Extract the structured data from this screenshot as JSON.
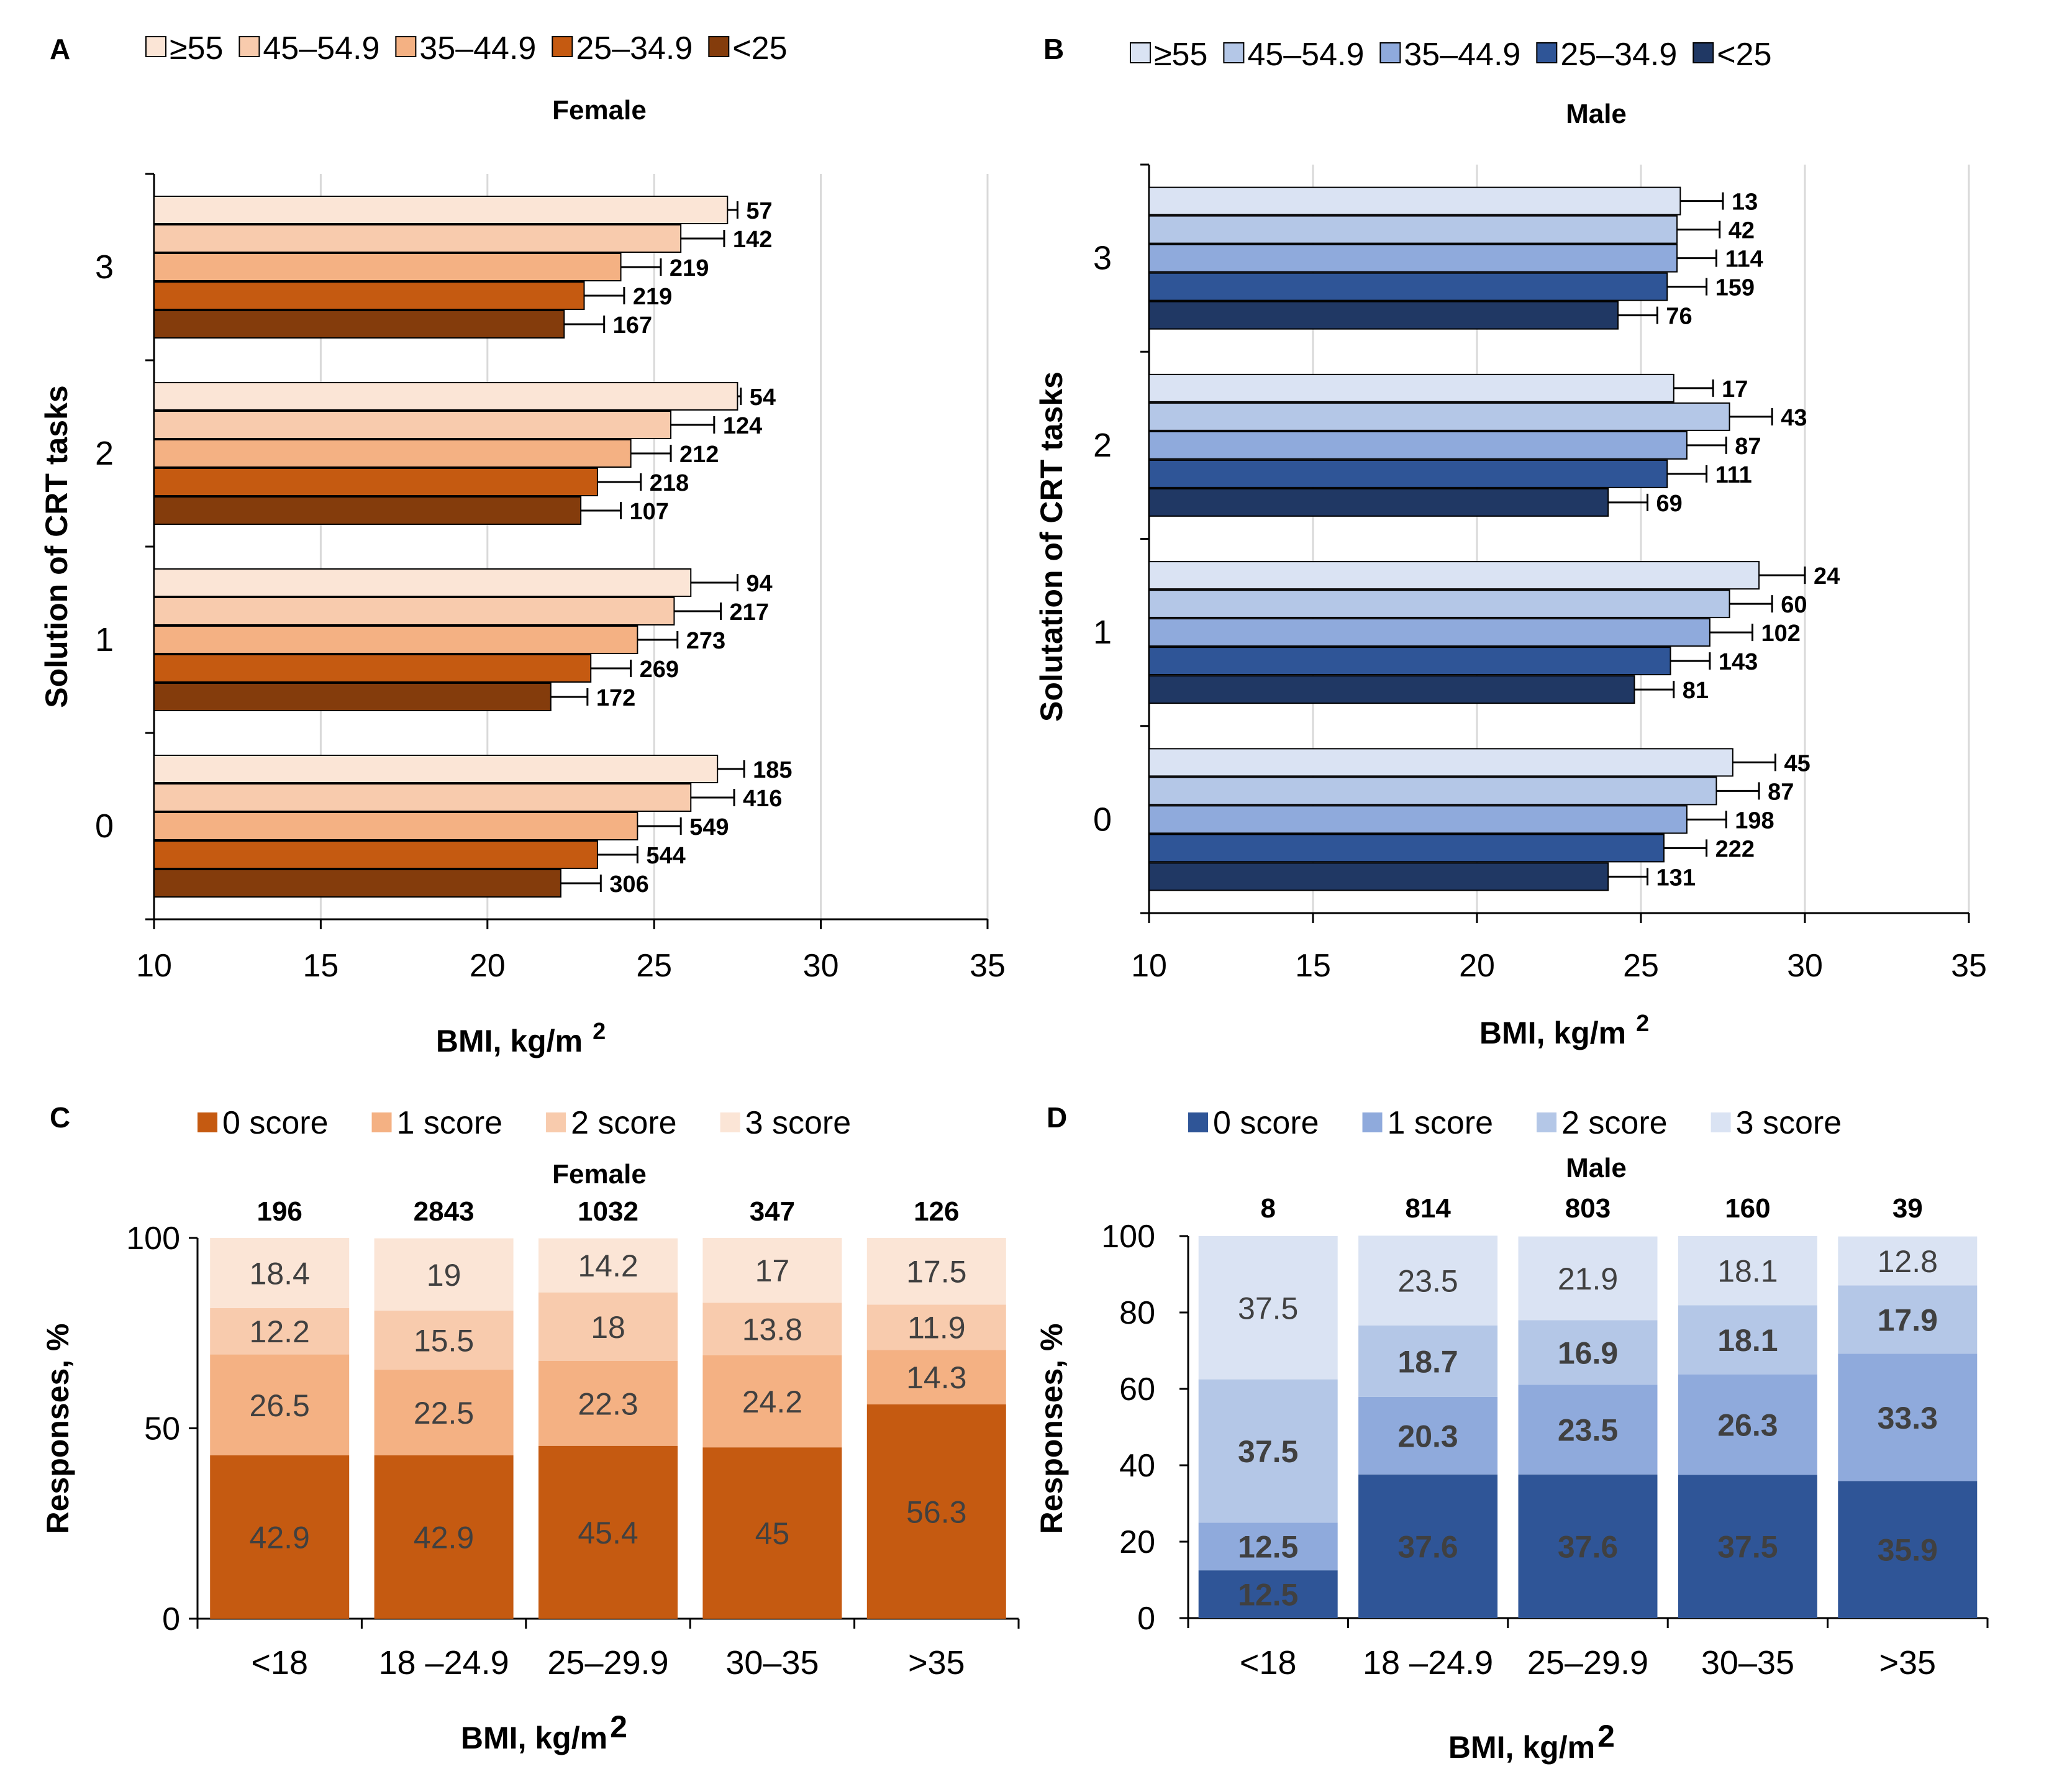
{
  "panels_ab": [
    {
      "letter": "A",
      "title": "Female",
      "y_axis_title": "Solution of CRT tasks",
      "x_axis_title": "BMI, kg/m",
      "x_axis_sup": "2",
      "legend": [
        "≥55",
        "45–54.9",
        "35–44.9",
        "25–34.9",
        "<25"
      ],
      "colors": [
        "#fbe5d6",
        "#f8cbad",
        "#f4b183",
        "#c55a11",
        "#843c0c"
      ]
    },
    {
      "letter": "B",
      "title": "Male",
      "y_axis_title": "Solutation of CRT tasks",
      "x_axis_title": "BMI, kg/m",
      "x_axis_sup": "2",
      "legend": [
        "≥55",
        "45–54.9",
        "35–44.9",
        "25–34.9",
        "<25"
      ],
      "colors": [
        "#dae3f3",
        "#b4c7e7",
        "#8faadc",
        "#2f5597",
        "#203864"
      ]
    }
  ],
  "panels_cd": [
    {
      "letter": "C",
      "title": "Female",
      "y_axis_title": "Responses, %",
      "x_axis_title": "BMI, kg/m",
      "x_axis_sup": "2",
      "legend": [
        "0 score",
        "1 score",
        "2 score",
        "3 score"
      ],
      "colors": [
        "#c55a11",
        "#f4b183",
        "#f8cbad",
        "#fbe5d6"
      ]
    },
    {
      "letter": "D",
      "title": "Male",
      "y_axis_title": "Responses, %",
      "x_axis_title": "BMI, kg/m",
      "x_axis_sup": "2",
      "legend": [
        "0 score",
        "1 score",
        "2 score",
        "3 score"
      ],
      "colors": [
        "#2f5597",
        "#8faadc",
        "#b4c7e7",
        "#dae3f3"
      ]
    }
  ],
  "chart_data": [
    {
      "type": "bar",
      "orientation": "horizontal",
      "panel": "A",
      "title": "Female",
      "xlabel": "BMI, kg/m2",
      "ylabel": "Solution of CRT tasks",
      "xlim": [
        10,
        35
      ],
      "xticks": [
        10,
        15,
        20,
        25,
        30,
        35
      ],
      "categories": [
        "3",
        "2",
        "1",
        "0"
      ],
      "series": [
        {
          "name": "≥55",
          "values": [
            27.2,
            27.5,
            26.1,
            26.9
          ],
          "errors": [
            0.3,
            0.1,
            1.4,
            0.8
          ],
          "n": [
            "57",
            "54",
            "94",
            "185"
          ]
        },
        {
          "name": "45–54.9",
          "values": [
            25.8,
            25.5,
            25.6,
            26.1
          ],
          "errors": [
            1.3,
            1.3,
            1.4,
            1.3
          ],
          "n": [
            "142",
            "124",
            "217",
            "416"
          ]
        },
        {
          "name": "35–44.9",
          "values": [
            24.0,
            24.3,
            24.5,
            24.5
          ],
          "errors": [
            1.2,
            1.2,
            1.2,
            1.3
          ],
          "n": [
            "219",
            "212",
            "273",
            "549"
          ]
        },
        {
          "name": "25–34.9",
          "values": [
            22.9,
            23.3,
            23.1,
            23.3
          ],
          "errors": [
            1.2,
            1.3,
            1.2,
            1.2
          ],
          "n": [
            "219",
            "218",
            "269",
            "544"
          ]
        },
        {
          "name": "<25",
          "values": [
            22.3,
            22.8,
            21.9,
            22.2
          ],
          "errors": [
            1.2,
            1.2,
            1.1,
            1.2
          ],
          "n": [
            "167",
            "107",
            "172",
            "306"
          ]
        }
      ]
    },
    {
      "type": "bar",
      "orientation": "horizontal",
      "panel": "B",
      "title": "Male",
      "xlabel": "BMI, kg/m2",
      "ylabel": "Solutation of CRT tasks",
      "xlim": [
        10,
        35
      ],
      "xticks": [
        10,
        15,
        20,
        25,
        30,
        35
      ],
      "categories": [
        "3",
        "2",
        "1",
        "0"
      ],
      "series": [
        {
          "name": "≥55",
          "values": [
            26.2,
            26.0,
            28.6,
            27.8
          ],
          "errors": [
            1.3,
            1.2,
            1.4,
            1.3
          ],
          "n": [
            "13",
            "17",
            "24",
            "45"
          ]
        },
        {
          "name": "45–54.9",
          "values": [
            26.1,
            27.7,
            27.7,
            27.3
          ],
          "errors": [
            1.3,
            1.3,
            1.3,
            1.3
          ],
          "n": [
            "42",
            "43",
            "60",
            "87"
          ]
        },
        {
          "name": "35–44.9",
          "values": [
            26.1,
            26.4,
            27.1,
            26.4
          ],
          "errors": [
            1.2,
            1.2,
            1.3,
            1.2
          ],
          "n": [
            "114",
            "87",
            "102",
            "198"
          ]
        },
        {
          "name": "25–34.9",
          "values": [
            25.8,
            25.8,
            25.9,
            25.7
          ],
          "errors": [
            1.2,
            1.2,
            1.2,
            1.3
          ],
          "n": [
            "159",
            "111",
            "143",
            "222"
          ]
        },
        {
          "name": "<25",
          "values": [
            24.3,
            24.0,
            24.8,
            24.0
          ],
          "errors": [
            1.2,
            1.2,
            1.2,
            1.2
          ],
          "n": [
            "76",
            "69",
            "81",
            "131"
          ]
        }
      ]
    },
    {
      "type": "bar",
      "stacked": true,
      "panel": "C",
      "title": "Female",
      "xlabel": "BMI, kg/m2",
      "ylabel": "Responses, %",
      "ylim": [
        0,
        100
      ],
      "yticks": [
        0,
        50,
        100
      ],
      "categories": [
        "<18",
        "18 –24.9",
        "25–29.9",
        "30–35",
        ">35"
      ],
      "n": [
        "196",
        "2843",
        "1032",
        "347",
        "126"
      ],
      "series": [
        {
          "name": "0 score",
          "values": [
            42.9,
            42.9,
            45.4,
            45,
            56.3
          ],
          "labels": [
            "42.9",
            "42.9",
            "45.4",
            "45",
            "56.3"
          ]
        },
        {
          "name": "1 score",
          "values": [
            26.5,
            22.5,
            22.3,
            24.2,
            14.3
          ],
          "labels": [
            "26.5",
            "22.5",
            "22.3",
            "24.2",
            "14.3"
          ]
        },
        {
          "name": "2 score",
          "values": [
            12.2,
            15.5,
            18,
            13.8,
            11.9
          ],
          "labels": [
            "12.2",
            "15.5",
            "18",
            "13.8",
            "11.9"
          ]
        },
        {
          "name": "3 score",
          "values": [
            18.4,
            19,
            14.2,
            17,
            17.5
          ],
          "labels": [
            "18.4",
            "19",
            "14.2",
            "17",
            "17.5"
          ]
        }
      ]
    },
    {
      "type": "bar",
      "stacked": true,
      "panel": "D",
      "title": "Male",
      "xlabel": "BMI, kg/m2",
      "ylabel": "Responses, %",
      "ylim": [
        0,
        100
      ],
      "yticks": [
        0,
        20,
        40,
        60,
        80,
        100
      ],
      "categories": [
        "<18",
        "18 –24.9",
        "25–29.9",
        "30–35",
        ">35"
      ],
      "n": [
        "8",
        "814",
        "803",
        "160",
        "39"
      ],
      "series": [
        {
          "name": "0 score",
          "values": [
            12.5,
            37.6,
            37.6,
            37.5,
            35.9
          ],
          "labels": [
            "12.5",
            "37.6",
            "37.6",
            "37.5",
            "35.9"
          ]
        },
        {
          "name": "1 score",
          "values": [
            12.5,
            20.3,
            23.5,
            26.3,
            33.3
          ],
          "labels": [
            "12.5",
            "20.3",
            "23.5",
            "26.3",
            "33.3"
          ]
        },
        {
          "name": "2 score",
          "values": [
            37.5,
            18.7,
            16.9,
            18.1,
            17.9
          ],
          "labels": [
            "37.5",
            "18.7",
            "16.9",
            "18.1",
            "17.9"
          ]
        },
        {
          "name": "3 score",
          "values": [
            37.5,
            23.5,
            21.9,
            18.1,
            12.8
          ],
          "labels": [
            "37.5",
            "23.5",
            "21.9",
            "18.1",
            "12.8"
          ]
        }
      ]
    }
  ]
}
